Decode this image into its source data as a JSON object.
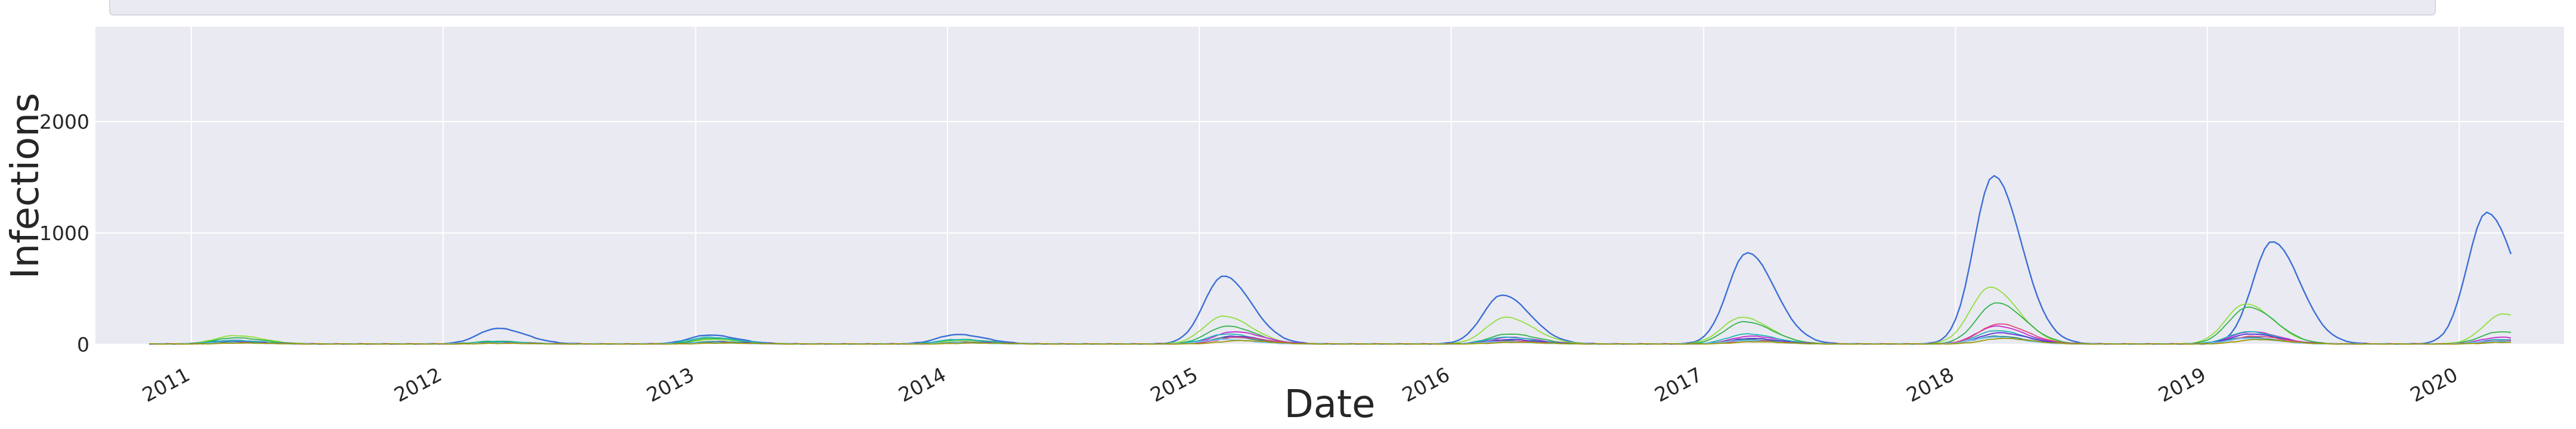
{
  "chart_data": {
    "type": "line",
    "title": "",
    "xlabel": "Date",
    "ylabel": "Infections",
    "xlim": [
      "2010-08-15",
      "2020-06-01"
    ],
    "ylim": [
      0,
      2850
    ],
    "yticks": [
      0,
      1000,
      2000
    ],
    "xticks": [
      "2011",
      "2012",
      "2013",
      "2014",
      "2015",
      "2016",
      "2017",
      "2018",
      "2019",
      "2020"
    ],
    "grid": true,
    "legend": "top (partially cropped)",
    "colors": [
      "#3b6fd6",
      "#8fe03a",
      "#2fb34a",
      "#c42bd1",
      "#1fb5b8",
      "#5c2fd6",
      "#2b8a8a",
      "#e0467c",
      "#7ac0ff",
      "#9b9b00"
    ],
    "series": [
      {
        "season_peaks": [
          [
            "2011-03-01",
            30
          ],
          [
            "2012-03-20",
            140
          ],
          [
            "2013-01-20",
            80
          ],
          [
            "2014-01-15",
            85
          ],
          [
            "2015-02-05",
            610
          ],
          [
            "2016-03-15",
            440
          ],
          [
            "2017-03-05",
            820
          ],
          [
            "2018-02-25",
            1510
          ],
          [
            "2019-04-05",
            920
          ],
          [
            "2020-02-10",
            1180
          ]
        ]
      },
      {
        "season_peaks": [
          [
            "2011-03-05",
            75
          ],
          [
            "2012-03-15",
            20
          ],
          [
            "2013-01-25",
            40
          ],
          [
            "2014-01-20",
            30
          ],
          [
            "2015-02-05",
            250
          ],
          [
            "2016-03-20",
            240
          ],
          [
            "2017-02-25",
            240
          ],
          [
            "2018-02-20",
            510
          ],
          [
            "2019-02-25",
            360
          ],
          [
            "2020-03-05",
            270
          ]
        ]
      },
      {
        "season_peaks": [
          [
            "2011-03-05",
            55
          ],
          [
            "2012-03-15",
            25
          ],
          [
            "2013-01-25",
            50
          ],
          [
            "2014-01-20",
            40
          ],
          [
            "2015-02-10",
            160
          ],
          [
            "2016-03-25",
            90
          ],
          [
            "2017-03-01",
            200
          ],
          [
            "2018-03-01",
            370
          ],
          [
            "2019-03-01",
            330
          ],
          [
            "2020-03-01",
            110
          ]
        ]
      },
      {
        "season_peaks": [
          [
            "2011-03-10",
            20
          ],
          [
            "2012-03-20",
            10
          ],
          [
            "2013-02-01",
            15
          ],
          [
            "2014-02-01",
            15
          ],
          [
            "2015-02-20",
            110
          ],
          [
            "2016-03-25",
            60
          ],
          [
            "2017-03-10",
            70
          ],
          [
            "2018-03-01",
            160
          ],
          [
            "2019-03-05",
            110
          ],
          [
            "2020-03-01",
            60
          ]
        ]
      },
      {
        "season_peaks": [
          [
            "2011-03-01",
            30
          ],
          [
            "2012-03-20",
            20
          ],
          [
            "2013-01-20",
            60
          ],
          [
            "2014-01-15",
            40
          ],
          [
            "2015-02-10",
            90
          ],
          [
            "2016-03-20",
            60
          ],
          [
            "2017-03-05",
            90
          ],
          [
            "2018-03-01",
            120
          ],
          [
            "2019-03-01",
            110
          ],
          [
            "2020-03-01",
            40
          ]
        ]
      },
      {
        "season_peaks": [
          [
            "2011-03-10",
            15
          ],
          [
            "2012-03-20",
            10
          ],
          [
            "2013-02-01",
            20
          ],
          [
            "2014-02-01",
            15
          ],
          [
            "2015-02-20",
            70
          ],
          [
            "2016-03-25",
            40
          ],
          [
            "2017-03-10",
            50
          ],
          [
            "2018-03-05",
            100
          ],
          [
            "2019-03-05",
            90
          ],
          [
            "2020-03-01",
            30
          ]
        ]
      },
      {
        "season_peaks": [
          [
            "2011-03-05",
            15
          ],
          [
            "2012-03-20",
            10
          ],
          [
            "2013-01-25",
            20
          ],
          [
            "2014-01-20",
            15
          ],
          [
            "2015-02-15",
            60
          ],
          [
            "2016-03-20",
            30
          ],
          [
            "2017-03-05",
            40
          ],
          [
            "2018-03-01",
            70
          ],
          [
            "2019-03-01",
            60
          ],
          [
            "2020-03-01",
            20
          ]
        ]
      },
      {
        "season_peaks": [
          [
            "2011-03-10",
            10
          ],
          [
            "2012-03-25",
            8
          ],
          [
            "2013-02-05",
            10
          ],
          [
            "2014-02-05",
            10
          ],
          [
            "2015-02-25",
            60
          ],
          [
            "2016-03-25",
            25
          ],
          [
            "2017-03-10",
            30
          ],
          [
            "2018-03-05",
            180
          ],
          [
            "2019-03-10",
            70
          ],
          [
            "2020-03-05",
            30
          ]
        ]
      },
      {
        "season_peaks": [
          [
            "2011-03-01",
            10
          ],
          [
            "2012-03-15",
            8
          ],
          [
            "2013-01-20",
            10
          ],
          [
            "2014-01-15",
            10
          ],
          [
            "2015-02-05",
            40
          ],
          [
            "2016-03-15",
            20
          ],
          [
            "2017-03-01",
            30
          ],
          [
            "2018-02-25",
            60
          ],
          [
            "2019-03-01",
            50
          ],
          [
            "2020-02-25",
            25
          ]
        ]
      },
      {
        "season_peaks": [
          [
            "2011-03-15",
            8
          ],
          [
            "2012-03-25",
            5
          ],
          [
            "2013-02-10",
            8
          ],
          [
            "2014-02-10",
            8
          ],
          [
            "2015-03-01",
            30
          ],
          [
            "2016-04-01",
            15
          ],
          [
            "2017-03-15",
            20
          ],
          [
            "2018-03-10",
            50
          ],
          [
            "2019-03-15",
            40
          ],
          [
            "2020-03-10",
            15
          ]
        ]
      }
    ]
  }
}
